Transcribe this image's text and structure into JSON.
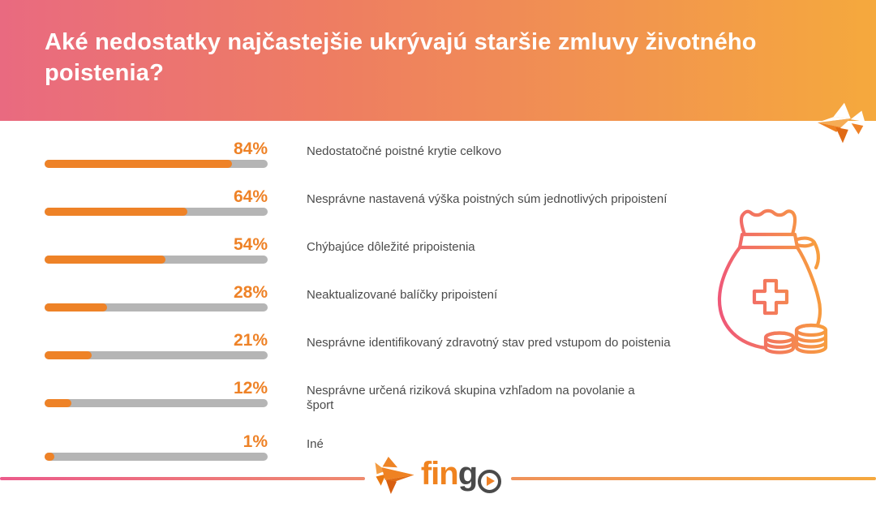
{
  "header": {
    "title": "Aké nedostatky najčastejšie ukrývajú staršie zmluvy životného poistenia?"
  },
  "chart_data": {
    "type": "bar",
    "orientation": "horizontal",
    "title": "Aké nedostatky najčastejšie ukrývajú staršie zmluvy životného poistenia?",
    "unit": "%",
    "categories": [
      "Nedostatočné poistné krytie celkovo",
      "Nesprávne nastavená výška poistných súm jednotlivých pripoistení",
      "Chýbajúce dôležité pripoistenia",
      "Neaktualizované balíčky pripoistení",
      "Nesprávne identifikovaný zdravotný stav pred vstupom do poistenia",
      "Nesprávne určená riziková skupina vzhľadom na povolanie a šport",
      "Iné"
    ],
    "values": [
      84,
      64,
      54,
      28,
      21,
      12,
      1
    ],
    "value_labels": [
      "84%",
      "64%",
      "54%",
      "28%",
      "21%",
      "12%",
      "1%"
    ],
    "xlim": [
      0,
      100
    ],
    "grid": false,
    "legend": false,
    "bar_color": "#ee8227",
    "track_color": "#b5b5b5",
    "value_label_color": "#ee8227",
    "category_label_color": "#4b4b4b",
    "rows": [
      {
        "pct": "84%",
        "label": "Nedostatočné poistné krytie celkovo"
      },
      {
        "pct": "64%",
        "label": "Nesprávne nastavená výška poistných súm jednotlivých pripoistení"
      },
      {
        "pct": "54%",
        "label": "Chýbajúce dôležité pripoistenia"
      },
      {
        "pct": "28%",
        "label": "Neaktualizované balíčky pripoistení"
      },
      {
        "pct": "21%",
        "label": "Nesprávne identifikovaný zdravotný stav pred vstupom do poistenia"
      },
      {
        "pct": "12%",
        "label": "Nesprávne určená riziková skupina vzhľadom na povolanie a\nšport"
      },
      {
        "pct": "1%",
        "label": "Iné"
      }
    ]
  },
  "footer": {
    "logo_fin": "fin",
    "logo_g": "g"
  },
  "icons": {
    "header_fish": "origami-fish-icon",
    "money_bag": "money-bag-medical-icon",
    "footer_fish": "fingo-fish-icon",
    "play": "play-icon"
  },
  "colors": {
    "header_gradient_left": "#e96a80",
    "header_gradient_right": "#f5a93d",
    "bar_fill": "#ee8227",
    "bar_track": "#b5b5b5",
    "title_text": "#ffffff",
    "label_text": "#4b4b4b",
    "logo_orange": "#f0831f",
    "logo_gray": "#4a4a4a",
    "footer_line_left": "#ec5b8b",
    "footer_line_right": "#f5a83e"
  }
}
